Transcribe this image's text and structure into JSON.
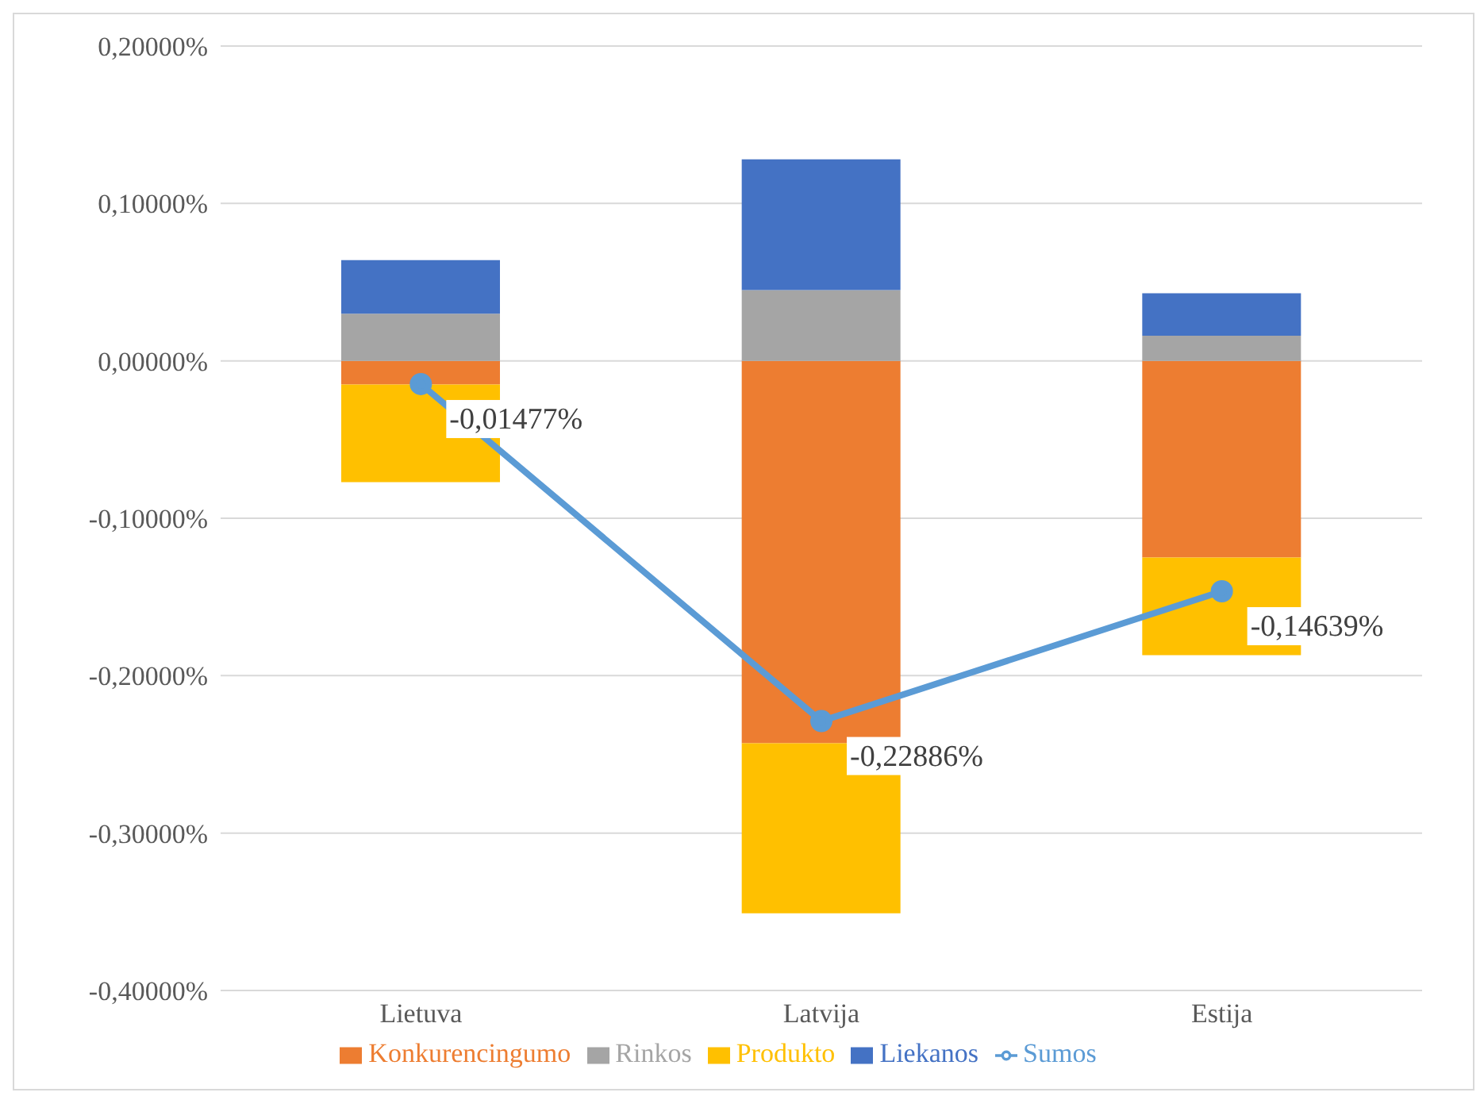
{
  "chart_data": {
    "type": "bar",
    "stacked": true,
    "categories": [
      "Lietuva",
      "Latvija",
      "Estija"
    ],
    "series": [
      {
        "name": "Konkurencingumo",
        "color": "#ed7d31",
        "values": [
          -0.015,
          -0.243,
          -0.125
        ]
      },
      {
        "name": "Rinkos",
        "color": "#a5a5a5",
        "values": [
          0.03,
          0.045,
          0.016
        ]
      },
      {
        "name": "Produkto",
        "color": "#ffc000",
        "values": [
          -0.062,
          -0.108,
          -0.062
        ]
      },
      {
        "name": "Liekanos",
        "color": "#4472c4",
        "values": [
          0.034,
          0.083,
          0.027
        ]
      },
      {
        "name": "Sumos",
        "type": "line",
        "color": "#5b9bd5",
        "marker": "circle",
        "values": [
          -0.01477,
          -0.22886,
          -0.14639
        ],
        "value_labels": [
          "-0,01477%",
          "-0,22886%",
          "-0,14639%"
        ]
      }
    ],
    "ylim": [
      -0.4,
      0.2
    ],
    "yticks": [
      {
        "value": -0.4,
        "label": "-0,40000%"
      },
      {
        "value": -0.3,
        "label": "-0,30000%"
      },
      {
        "value": -0.2,
        "label": "-0,20000%"
      },
      {
        "value": -0.1,
        "label": "-0,10000%"
      },
      {
        "value": 0,
        "label": "0,00000%"
      },
      {
        "value": 0.1,
        "label": "0,10000%"
      },
      {
        "value": 0.2,
        "label": "0,20000%"
      }
    ],
    "grid": "y",
    "legend": "bottom"
  }
}
